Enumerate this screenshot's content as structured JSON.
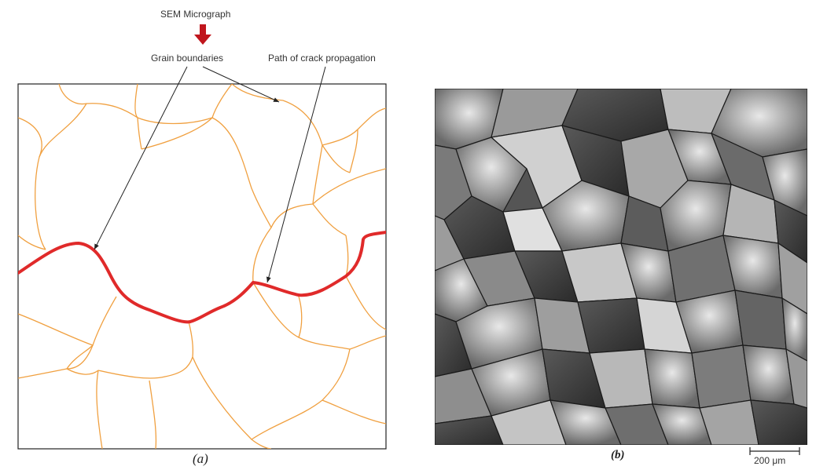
{
  "labels": {
    "sem_micrograph": "SEM Micrograph",
    "grain_boundaries": "Grain boundaries",
    "crack_path": "Path of crack propagation"
  },
  "captions": {
    "a": "(a)",
    "b": "(b)"
  },
  "scale_bar": {
    "text": "200 μm"
  },
  "colors": {
    "grain_boundary": "#f0a040",
    "crack": "#e02a2a",
    "arrow_accent": "#c0161d",
    "frame": "#222222"
  }
}
